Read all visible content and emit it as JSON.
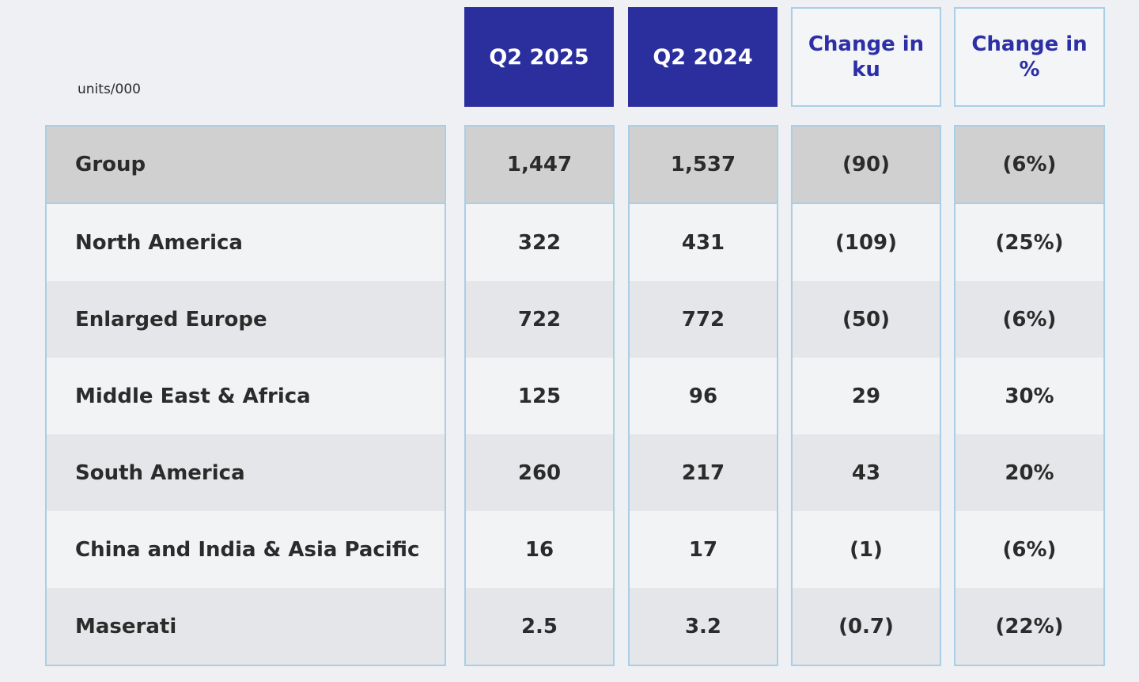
{
  "units_label": "units/000",
  "headers": {
    "q2_2025": "Q2 2025",
    "q2_2024": "Q2 2024",
    "change_ku": "Change in\nku",
    "change_pct": "Change in\n%"
  },
  "rows": [
    {
      "region": "Group",
      "q2_2025": "1,447",
      "q2_2024": "1,537",
      "change_ku": "(90)",
      "change_pct": "(6%)"
    },
    {
      "region": "North America",
      "q2_2025": "322",
      "q2_2024": "431",
      "change_ku": "(109)",
      "change_pct": "(25%)"
    },
    {
      "region": "Enlarged Europe",
      "q2_2025": "722",
      "q2_2024": "772",
      "change_ku": "(50)",
      "change_pct": "(6%)"
    },
    {
      "region": "Middle East & Africa",
      "q2_2025": "125",
      "q2_2024": "96",
      "change_ku": "29",
      "change_pct": "30%"
    },
    {
      "region": "South America",
      "q2_2025": "260",
      "q2_2024": "217",
      "change_ku": "43",
      "change_pct": "20%"
    },
    {
      "region": "China and India & Asia Pacific",
      "q2_2025": "16",
      "q2_2024": "17",
      "change_ku": "(1)",
      "change_pct": "(6%)"
    },
    {
      "region": "Maserati",
      "q2_2025": "2.5",
      "q2_2024": "3.2",
      "change_ku": "(0.7)",
      "change_pct": "(22%)"
    }
  ],
  "chart_data": {
    "type": "table",
    "columns": [
      "Q2 2025",
      "Q2 2024",
      "Change in ku",
      "Change in %"
    ],
    "rows": [
      "Group",
      "North America",
      "Enlarged Europe",
      "Middle East & Africa",
      "South America",
      "China and India & Asia Pacific",
      "Maserati"
    ],
    "unit": "units/000"
  }
}
